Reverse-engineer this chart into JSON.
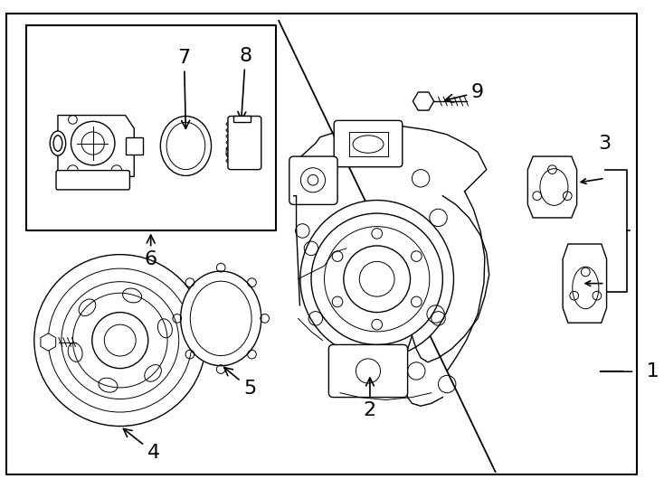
{
  "bg_color": "#ffffff",
  "line_color": "#000000",
  "label_color": "#000000",
  "fig_width": 7.34,
  "fig_height": 5.4,
  "dpi": 100,
  "label_fontsize": 14,
  "label_fontsize_large": 16
}
